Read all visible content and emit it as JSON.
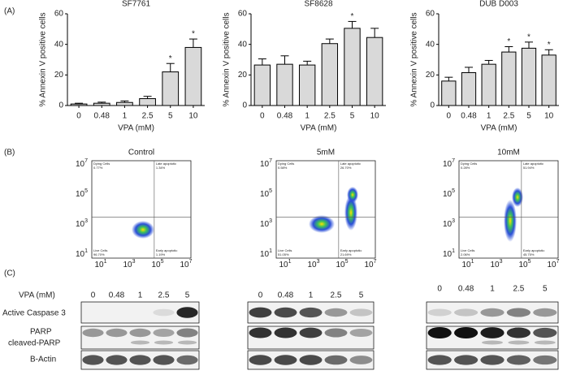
{
  "panel_labels": [
    "(A)",
    "(B)",
    "(C)"
  ],
  "chart_data": [
    {
      "type": "bar",
      "title": "SF7761",
      "x_label": "VPA (mM)",
      "y_label": "% Annexin V positive cells",
      "categories": [
        "0",
        "0.48",
        "1",
        "2.5",
        "5",
        "10"
      ],
      "values": [
        1,
        1.5,
        2,
        4.5,
        22,
        38
      ],
      "errors": [
        0.5,
        0.7,
        1,
        1.5,
        5.5,
        5.5
      ],
      "markers": [
        null,
        null,
        null,
        null,
        "*",
        "*"
      ],
      "color": "#d9d9d9",
      "ylim": [
        0,
        60
      ],
      "yticks": [
        0,
        20,
        40,
        60
      ]
    },
    {
      "type": "bar",
      "title": "SF8628",
      "x_label": "VPA (mM)",
      "y_label": "% Annexin V positive cells",
      "categories": [
        "0",
        "0.48",
        "1",
        "2.5",
        "5",
        "10"
      ],
      "values": [
        26.5,
        27,
        26.5,
        40.5,
        50.5,
        44.5
      ],
      "errors": [
        4,
        5.5,
        2.5,
        3,
        4.5,
        6
      ],
      "markers": [
        null,
        null,
        null,
        null,
        "*",
        null
      ],
      "color": "#d9d9d9",
      "ylim": [
        0,
        60
      ],
      "yticks": [
        0,
        20,
        40,
        60
      ]
    },
    {
      "type": "bar",
      "title": "DUB D003",
      "x_label": "VPA (mM)",
      "y_label": "% Annexin V positive cells",
      "categories": [
        "0",
        "0.48",
        "1",
        "2.5",
        "5",
        "10"
      ],
      "values": [
        16,
        21.5,
        27,
        35,
        37.5,
        33
      ],
      "errors": [
        2.5,
        3.5,
        2.5,
        3.5,
        4,
        3.5
      ],
      "markers": [
        null,
        null,
        null,
        "*",
        "*",
        "*"
      ],
      "color": "#d9d9d9",
      "ylim": [
        0,
        60
      ],
      "yticks": [
        0,
        20,
        40,
        60
      ]
    }
  ],
  "flow": {
    "ticks": [
      {
        "base": "10",
        "exponent": "1"
      },
      {
        "base": "10",
        "exponent": "3"
      },
      {
        "base": "10",
        "exponent": "5"
      },
      {
        "base": "10",
        "exponent": "7"
      }
    ],
    "plots": [
      {
        "title": "Control",
        "quadrants": [
          [
            "Dying Cells",
            "0.77%"
          ],
          [
            "Late apoptotic",
            "1.34%"
          ],
          [
            "Live Cells",
            "96.70%"
          ],
          [
            "Early apoptotic",
            "1.19%"
          ]
        ]
      },
      {
        "title": "5mM",
        "quadrants": [
          [
            "Dying Cells",
            "0.58%"
          ],
          [
            "Late apoptotic",
            "26.70%"
          ],
          [
            "Live Cells",
            "51.05%"
          ],
          [
            "Early apoptotic",
            "21.69%"
          ]
        ]
      },
      {
        "title": "10mM",
        "quadrants": [
          [
            "Dying Cells",
            "0.28%"
          ],
          [
            "Late apoptotic",
            "51.94%"
          ],
          [
            "Live Cells",
            "2.06%"
          ],
          [
            "Early apoptotic",
            "45.75%"
          ]
        ]
      }
    ]
  },
  "blots": {
    "dose_label": "VPA (mM)",
    "lanes": [
      "0",
      "0.48",
      "1",
      "2.5",
      "5"
    ],
    "rows": [
      "Active Caspase 3",
      "PARP",
      "cleaved-PARP",
      "B-Actin"
    ]
  }
}
